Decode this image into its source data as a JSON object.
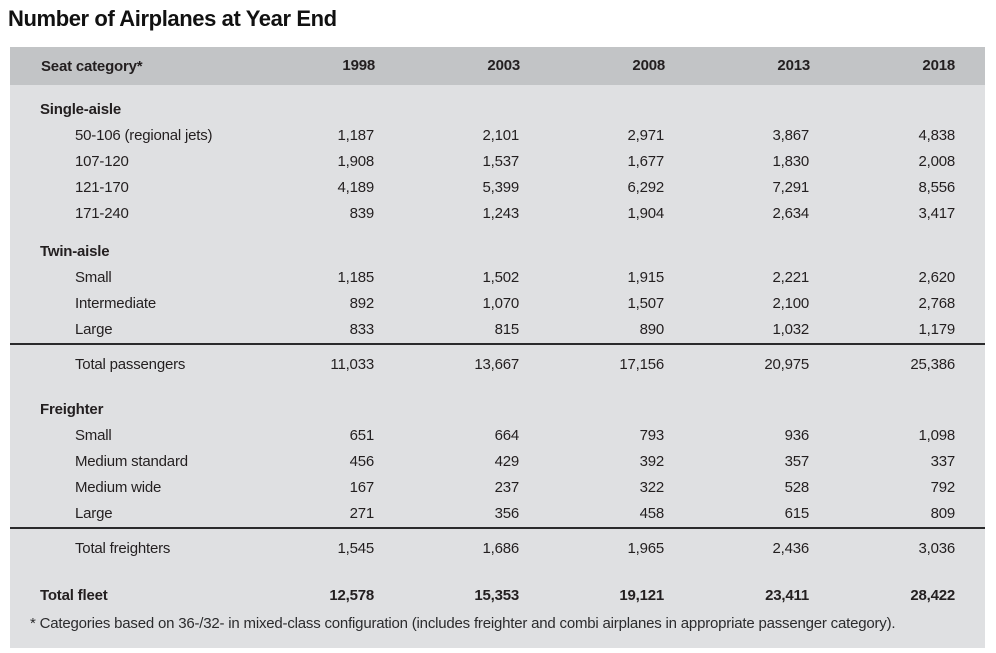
{
  "title": "Number of Airplanes at Year End",
  "table": {
    "header": {
      "label": "Seat category*",
      "years": [
        "1998",
        "2003",
        "2008",
        "2013",
        "2018"
      ]
    },
    "rows": [
      {
        "label": "Single-aisle"
      },
      {
        "label": "50-106 (regional jets)",
        "values": [
          "1,187",
          "2,101",
          "2,971",
          "3,867",
          "4,838"
        ]
      },
      {
        "label": "107-120",
        "values": [
          "1,908",
          "1,537",
          "1,677",
          "1,830",
          "2,008"
        ]
      },
      {
        "label": "121-170",
        "values": [
          "4,189",
          "5,399",
          "6,292",
          "7,291",
          "8,556"
        ]
      },
      {
        "label": "171-240",
        "values": [
          "839",
          "1,243",
          "1,904",
          "2,634",
          "3,417"
        ]
      },
      {
        "label": "Twin-aisle"
      },
      {
        "label": "Small",
        "values": [
          "1,185",
          "1,502",
          "1,915",
          "2,221",
          "2,620"
        ]
      },
      {
        "label": "Intermediate",
        "values": [
          "892",
          "1,070",
          "1,507",
          "2,100",
          "2,768"
        ]
      },
      {
        "label": "Large",
        "values": [
          "833",
          "815",
          "890",
          "1,032",
          "1,179"
        ]
      },
      {
        "label": "Total passengers",
        "values": [
          "11,033",
          "13,667",
          "17,156",
          "20,975",
          "25,386"
        ]
      },
      {
        "label": "Freighter"
      },
      {
        "label": "Small",
        "values": [
          "651",
          "664",
          "793",
          "936",
          "1,098"
        ]
      },
      {
        "label": "Medium standard",
        "values": [
          "456",
          "429",
          "392",
          "357",
          "337"
        ]
      },
      {
        "label": "Medium wide",
        "values": [
          "167",
          "237",
          "322",
          "528",
          "792"
        ]
      },
      {
        "label": "Large",
        "values": [
          "271",
          "356",
          "458",
          "615",
          "809"
        ]
      },
      {
        "label": "Total freighters",
        "values": [
          "1,545",
          "1,686",
          "1,965",
          "2,436",
          "3,036"
        ]
      },
      {
        "label": "Total fleet",
        "values": [
          "12,578",
          "15,353",
          "19,121",
          "23,411",
          "28,422"
        ]
      }
    ]
  },
  "footnote": "* Categories based on 36-/32- in mixed-class configuration (includes freighter and combi airplanes in appropriate passenger category).",
  "colors": {
    "header_bg": "#c2c4c6",
    "body_bg": "#dfe0e2",
    "text": "#231f20",
    "rule": "#2a2a2c"
  },
  "chart_data": {
    "type": "table",
    "title": "Number of Airplanes at Year End",
    "columns": [
      "Seat category*",
      "1998",
      "2003",
      "2008",
      "2013",
      "2018"
    ],
    "sections": [
      {
        "name": "Single-aisle",
        "rows": [
          [
            "50-106 (regional jets)",
            1187,
            2101,
            2971,
            3867,
            4838
          ],
          [
            "107-120",
            1908,
            1537,
            1677,
            1830,
            2008
          ],
          [
            "121-170",
            4189,
            5399,
            6292,
            7291,
            8556
          ],
          [
            "171-240",
            839,
            1243,
            1904,
            2634,
            3417
          ]
        ]
      },
      {
        "name": "Twin-aisle",
        "rows": [
          [
            "Small",
            1185,
            1502,
            1915,
            2221,
            2620
          ],
          [
            "Intermediate",
            892,
            1070,
            1507,
            2100,
            2768
          ],
          [
            "Large",
            833,
            815,
            890,
            1032,
            1179
          ]
        ]
      },
      {
        "name": "Freighter",
        "rows": [
          [
            "Small",
            651,
            664,
            793,
            936,
            1098
          ],
          [
            "Medium standard",
            456,
            429,
            392,
            357,
            337
          ],
          [
            "Medium wide",
            167,
            237,
            322,
            528,
            792
          ],
          [
            "Large",
            271,
            356,
            458,
            615,
            809
          ]
        ]
      }
    ],
    "totals": [
      [
        "Total passengers",
        11033,
        13667,
        17156,
        20975,
        25386
      ],
      [
        "Total freighters",
        1545,
        1686,
        1965,
        2436,
        3036
      ],
      [
        "Total fleet",
        12578,
        15353,
        19121,
        23411,
        28422
      ]
    ],
    "footnote": "* Categories based on 36-/32- in mixed-class configuration (includes freighter and combi airplanes in appropriate passenger category)."
  }
}
